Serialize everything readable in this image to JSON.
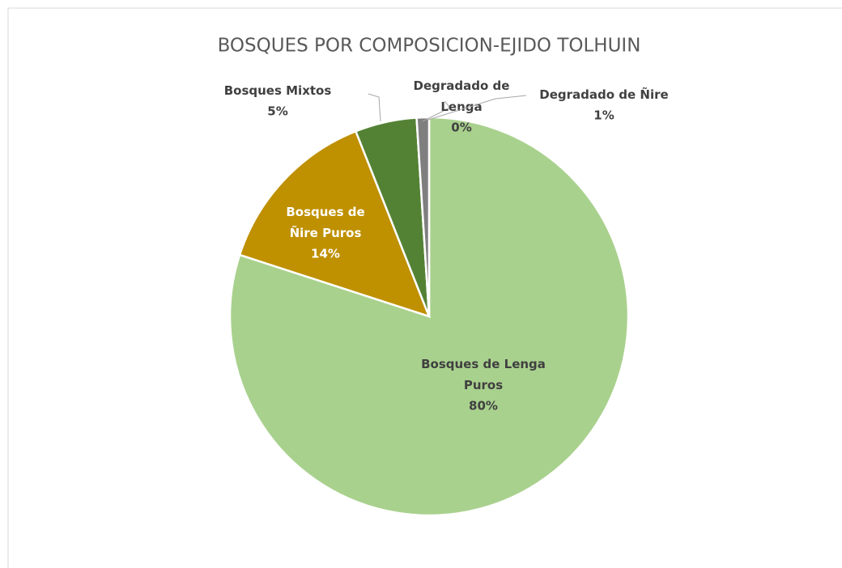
{
  "chart_data": {
    "type": "pie",
    "title": "BOSQUES POR COMPOSICION-EJIDO TOLHUIN",
    "categories": [
      "Bosques de Lenga Puros",
      "Bosques de Ñire Puros",
      "Bosques Mixtos",
      "Degradado de Lenga",
      "Degradado de Ñire"
    ],
    "values": [
      80,
      14,
      5,
      0,
      1
    ],
    "value_labels": [
      "80%",
      "14%",
      "5%",
      "0%",
      "1%"
    ],
    "colors": [
      "#a9d18e",
      "#bf9000",
      "#548235",
      "#a5a5a5",
      "#7f7f7f"
    ]
  }
}
